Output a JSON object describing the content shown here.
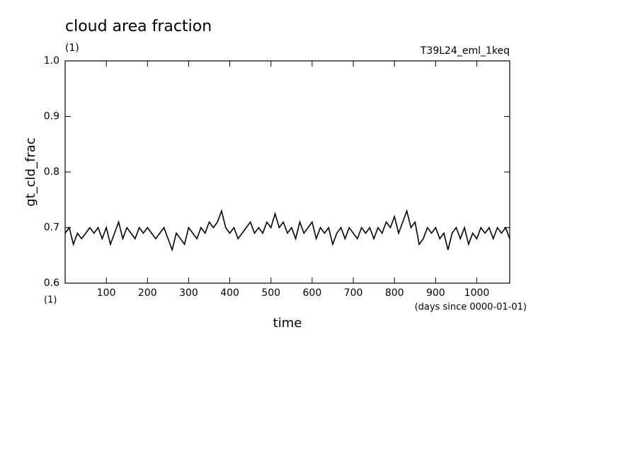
{
  "chart_data": {
    "type": "line",
    "title": "cloud area fraction",
    "unit_label": "(1)",
    "experiment": "T39L24_eml_1keq",
    "ylabel": "gt_cld_frac",
    "xlabel": "time",
    "x_unit_label": "(1)",
    "x_units": "(days since 0000-01-01)",
    "xlim": [
      0,
      1080
    ],
    "ylim": [
      0.6,
      1.0
    ],
    "xticks": [
      100,
      200,
      300,
      400,
      500,
      600,
      700,
      800,
      900,
      1000
    ],
    "yticks": [
      0.6,
      0.7,
      0.8,
      0.9,
      {
        "value": 1.0,
        "label": "1.0"
      }
    ],
    "series": [
      {
        "name": "gt_cld_frac",
        "color": "#000000",
        "x": [
          0,
          10,
          20,
          30,
          40,
          50,
          60,
          70,
          80,
          90,
          100,
          110,
          120,
          130,
          140,
          150,
          160,
          170,
          180,
          190,
          200,
          210,
          220,
          230,
          240,
          250,
          260,
          270,
          280,
          290,
          300,
          310,
          320,
          330,
          340,
          350,
          360,
          370,
          380,
          390,
          400,
          410,
          420,
          430,
          440,
          450,
          460,
          470,
          480,
          490,
          500,
          510,
          520,
          530,
          540,
          550,
          560,
          570,
          580,
          590,
          600,
          610,
          620,
          630,
          640,
          650,
          660,
          670,
          680,
          690,
          700,
          710,
          720,
          730,
          740,
          750,
          760,
          770,
          780,
          790,
          800,
          810,
          820,
          830,
          840,
          850,
          860,
          870,
          880,
          890,
          900,
          910,
          920,
          930,
          940,
          950,
          960,
          970,
          980,
          990,
          1000,
          1010,
          1020,
          1030,
          1040,
          1050,
          1060,
          1070,
          1080
        ],
        "values": [
          0.69,
          0.7,
          0.67,
          0.69,
          0.68,
          0.69,
          0.7,
          0.69,
          0.7,
          0.68,
          0.7,
          0.67,
          0.69,
          0.71,
          0.68,
          0.7,
          0.69,
          0.68,
          0.7,
          0.69,
          0.7,
          0.69,
          0.68,
          0.69,
          0.7,
          0.68,
          0.66,
          0.69,
          0.68,
          0.67,
          0.7,
          0.69,
          0.68,
          0.7,
          0.69,
          0.71,
          0.7,
          0.71,
          0.73,
          0.7,
          0.69,
          0.7,
          0.68,
          0.69,
          0.7,
          0.71,
          0.69,
          0.7,
          0.69,
          0.71,
          0.7,
          0.725,
          0.7,
          0.71,
          0.69,
          0.7,
          0.68,
          0.71,
          0.69,
          0.7,
          0.71,
          0.68,
          0.7,
          0.69,
          0.7,
          0.67,
          0.69,
          0.7,
          0.68,
          0.7,
          0.69,
          0.68,
          0.7,
          0.69,
          0.7,
          0.68,
          0.7,
          0.69,
          0.71,
          0.7,
          0.72,
          0.69,
          0.71,
          0.73,
          0.7,
          0.71,
          0.67,
          0.68,
          0.7,
          0.69,
          0.7,
          0.68,
          0.69,
          0.66,
          0.69,
          0.7,
          0.68,
          0.7,
          0.67,
          0.69,
          0.68,
          0.7,
          0.69,
          0.7,
          0.68,
          0.7,
          0.69,
          0.7,
          0.68
        ]
      }
    ]
  }
}
